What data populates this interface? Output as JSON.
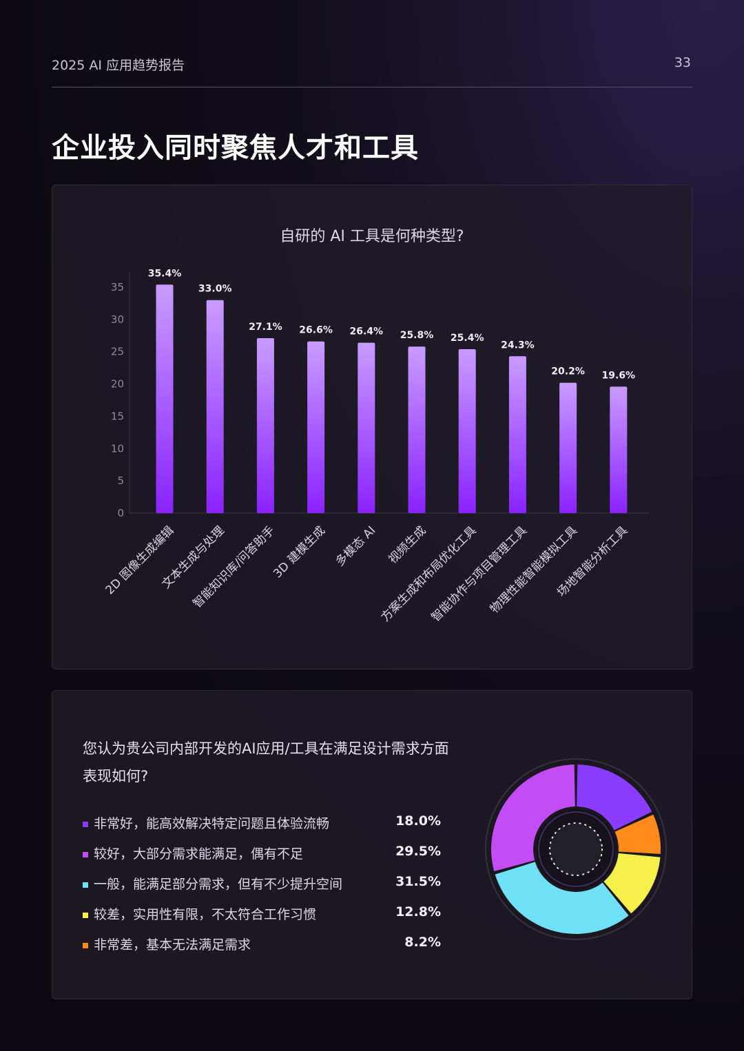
{
  "header": {
    "report_title": "2025 AI 应用趋势报告",
    "page_number": "33"
  },
  "page_heading": "企业投入同时聚焦人才和工具",
  "bar_chart_title": "自研的 AI 工具是何种类型?",
  "donut_question": "您认为贵公司内部开发的AI应用/工具在满足设计需求方面表现如何?",
  "legend": [
    {
      "label": "非常好，能高效解决特定问题且体验流畅",
      "value": "18.0%",
      "color": "#8a3dff"
    },
    {
      "label": "较好，大部分需求能满足，偶有不足",
      "value": "29.5%",
      "color": "#c24df5"
    },
    {
      "label": "一般，能满足部分需求，但有不少提升空间",
      "value": "31.5%",
      "color": "#6fe0f5"
    },
    {
      "label": "较差，实用性有限，不太符合工作习惯",
      "value": "12.8%",
      "color": "#f6f04a"
    },
    {
      "label": "非常差，基本无法满足需求",
      "value": "8.2%",
      "color": "#ff8c1a"
    }
  ],
  "chart_data": [
    {
      "type": "bar",
      "title": "自研的 AI 工具是何种类型?",
      "categories": [
        "2D 图像生成编辑",
        "文本生成与处理",
        "智能知识库/问答助手",
        "3D 建模生成",
        "多模态 AI",
        "视频生成",
        "方案生成和布局优化工具",
        "智能协作与项目管理工具",
        "物理性能智能模拟工具",
        "场地智能分析工具"
      ],
      "values": [
        35.4,
        33.0,
        27.1,
        26.6,
        26.4,
        25.8,
        25.4,
        24.3,
        20.2,
        19.6
      ],
      "value_labels": [
        "35.4%",
        "33.0%",
        "27.1%",
        "26.6%",
        "26.4%",
        "25.8%",
        "25.4%",
        "24.3%",
        "20.2%",
        "19.6%"
      ],
      "yticks": [
        "0",
        "5",
        "10",
        "15",
        "20",
        "25",
        "30",
        "35"
      ],
      "ylim": [
        0,
        37.5
      ],
      "grid": false,
      "bar_color_top": "#c99cff",
      "bar_color_bottom": "#8a22ff"
    },
    {
      "type": "pie",
      "title": "您认为贵公司内部开发的AI应用/工具在满足设计需求方面表现如何?",
      "categories": [
        "非常好，能高效解决特定问题且体验流畅",
        "较好，大部分需求能满足，偶有不足",
        "一般，能满足部分需求，但有不少提升空间",
        "较差，实用性有限，不太符合工作习惯",
        "非常差，基本无法满足需求"
      ],
      "values": [
        18.0,
        29.5,
        31.5,
        12.8,
        8.2
      ],
      "order_clockwise_from_top": [
        0,
        4,
        3,
        2,
        1
      ],
      "colors": [
        "#8a3dff",
        "#c24df5",
        "#6fe0f5",
        "#f6f04a",
        "#ff8c1a"
      ],
      "legend_position": "left"
    }
  ]
}
